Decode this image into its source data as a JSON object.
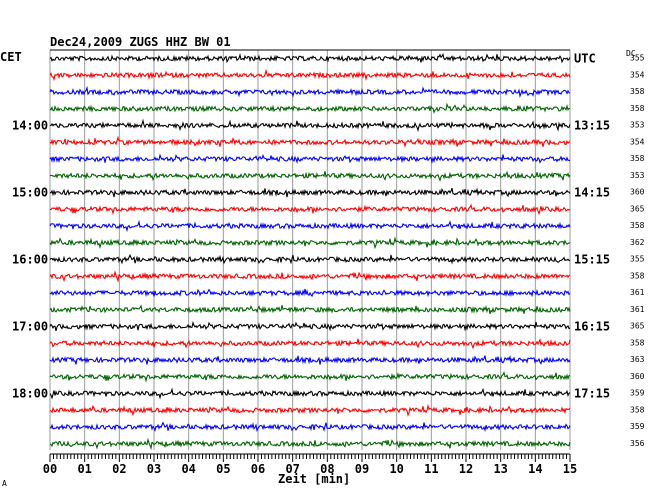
{
  "chart_data": {
    "type": "line",
    "title": "Dec24,2009   ZUGS HHZ BW 01",
    "xlabel": "Zeit [min]",
    "left_axis_label": "CET",
    "right_axis_label": "UTC",
    "dc_label": "DC",
    "xlim": [
      0,
      15
    ],
    "x_ticks": [
      "00",
      "01",
      "02",
      "03",
      "04",
      "05",
      "06",
      "07",
      "08",
      "09",
      "10",
      "11",
      "12",
      "13",
      "14",
      "15"
    ],
    "grid": true,
    "trace_colors": [
      "#000000",
      "#ff0000",
      "#0000ff",
      "#006400"
    ],
    "left_time_labels": [
      {
        "row": 4,
        "text": "14:00"
      },
      {
        "row": 8,
        "text": "15:00"
      },
      {
        "row": 12,
        "text": "16:00"
      },
      {
        "row": 16,
        "text": "17:00"
      },
      {
        "row": 20,
        "text": "18:00"
      }
    ],
    "right_time_labels": [
      {
        "row": 0,
        "text": "UTC"
      },
      {
        "row": 4,
        "text": "13:15"
      },
      {
        "row": 8,
        "text": "14:15"
      },
      {
        "row": 12,
        "text": "15:15"
      },
      {
        "row": 16,
        "text": "16:15"
      },
      {
        "row": 20,
        "text": "17:15"
      }
    ],
    "dc_values": [
      355,
      354,
      358,
      358,
      353,
      354,
      358,
      353,
      360,
      365,
      358,
      362,
      355,
      358,
      361,
      361,
      365,
      358,
      363,
      360,
      359,
      358,
      359,
      356
    ],
    "series": [
      {
        "row": 0,
        "color": "#000000",
        "dc": 355
      },
      {
        "row": 1,
        "color": "#ff0000",
        "dc": 354
      }
    ]
  },
  "footer_mark": "A"
}
